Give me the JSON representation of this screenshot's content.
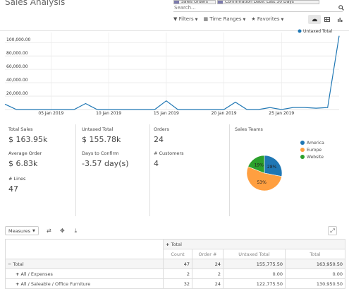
{
  "page": {
    "title": "Sales Analysis"
  },
  "search": {
    "facets": [
      {
        "label": "Sales Orders"
      },
      {
        "label": "Confirmation Date: Last 30 Days"
      }
    ],
    "placeholder": "Search..."
  },
  "filters": {
    "filters_label": "Filters",
    "time_ranges_label": "Time Ranges",
    "favorites_label": "Favorites"
  },
  "views": [
    "graph-icon",
    "pivot-icon",
    "bar-chart-icon"
  ],
  "chart_data": {
    "type": "line",
    "legend": "Untaxed Total",
    "legend_position": "top-right",
    "color": "#1f77b4",
    "x_tick_labels": [
      "05 Jan 2019",
      "10 Jan 2019",
      "15 Jan 2019",
      "20 Jan 2019",
      "25 Jan 2019"
    ],
    "x_tick_index": [
      4,
      9,
      14,
      19,
      24
    ],
    "y_tick_labels": [
      "20,000.00",
      "40,000.00",
      "60,000.00",
      "80,000.00",
      "100,000.00"
    ],
    "y_ticks": [
      20000,
      40000,
      60000,
      80000,
      100000
    ],
    "ylim": [
      0,
      115000
    ],
    "grid": true,
    "values": [
      8000,
      0,
      0,
      0,
      0,
      0,
      0,
      9000,
      0,
      0,
      0,
      0,
      0,
      0,
      13000,
      0,
      0,
      0,
      0,
      0,
      11000,
      0,
      0,
      3000,
      0,
      3000,
      3000,
      2000,
      3000,
      110000
    ]
  },
  "kpis": {
    "total_sales": {
      "label": "Total Sales",
      "value": "$ 163.95k"
    },
    "untaxed_total": {
      "label": "Untaxed Total",
      "value": "$ 155.78k"
    },
    "orders": {
      "label": "Orders",
      "value": "24"
    },
    "average_order": {
      "label": "Average Order",
      "value": "$ 6.83k"
    },
    "days_to_confirm": {
      "label": "Days to Confirm",
      "value": "-3.57 day(s)"
    },
    "customers": {
      "label": "# Customers",
      "value": "4"
    },
    "lines": {
      "label": "# Lines",
      "value": "47"
    }
  },
  "sales_teams": {
    "title": "Sales Teams",
    "chart_data": {
      "type": "pie",
      "categories": [
        "America",
        "Europe",
        "Website"
      ],
      "values": [
        28,
        53,
        19
      ],
      "labels": [
        "28%",
        "53%",
        "19%"
      ],
      "colors": [
        "#1f77b4",
        "#ff9f40",
        "#2ca02c"
      ]
    }
  },
  "pivot": {
    "measures_label": "Measures",
    "col_header": "Total",
    "measure_headers": [
      "Count",
      "Order #",
      "Untaxed Total",
      "Total"
    ],
    "rows": [
      {
        "label": "Total",
        "sign": "−",
        "values": [
          "47",
          "24",
          "155,775.50",
          "163,950.50"
        ]
      },
      {
        "label": "All / Expenses",
        "sign": "+",
        "values": [
          "2",
          "2",
          "0.00",
          "0.00"
        ]
      },
      {
        "label": "All / Saleable / Office Furniture",
        "sign": "+",
        "values": [
          "32",
          "24",
          "122,775.50",
          "130,950.50"
        ]
      }
    ]
  }
}
